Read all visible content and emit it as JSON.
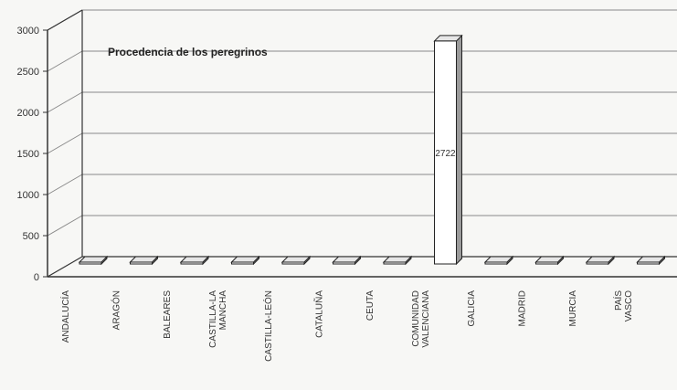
{
  "chart_data": {
    "type": "bar",
    "title": "Procedencia de los peregrinos",
    "xlabel": "",
    "ylabel": "",
    "ylim": [
      0,
      3000
    ],
    "yticks": [
      0,
      500,
      1000,
      1500,
      2000,
      2500,
      3000
    ],
    "grid": true,
    "legend": "none",
    "categories": [
      "ANDALUCÍA",
      "ARAGÓN",
      "BALEARES",
      "CASTILLA-LA MANCHA",
      "CASTILLA-LEÓN",
      "CATALUÑA",
      "CEUTA",
      "COMUNIDAD VALENCIANA",
      "GALICIA",
      "MADRID",
      "MURCIA",
      "PAÍS VASCO"
    ],
    "values": [
      1,
      1,
      2,
      2,
      1,
      2,
      2,
      2722,
      1,
      1,
      1,
      1
    ],
    "data_labels": [
      "",
      "",
      "",
      "",
      "",
      "",
      "",
      "2722",
      "",
      "",
      "",
      ""
    ]
  },
  "colors": {
    "bar_fill": "#ffffff",
    "bar_side": "#9a9a9a",
    "grid": "#8a8a8a",
    "axis": "#333333"
  }
}
